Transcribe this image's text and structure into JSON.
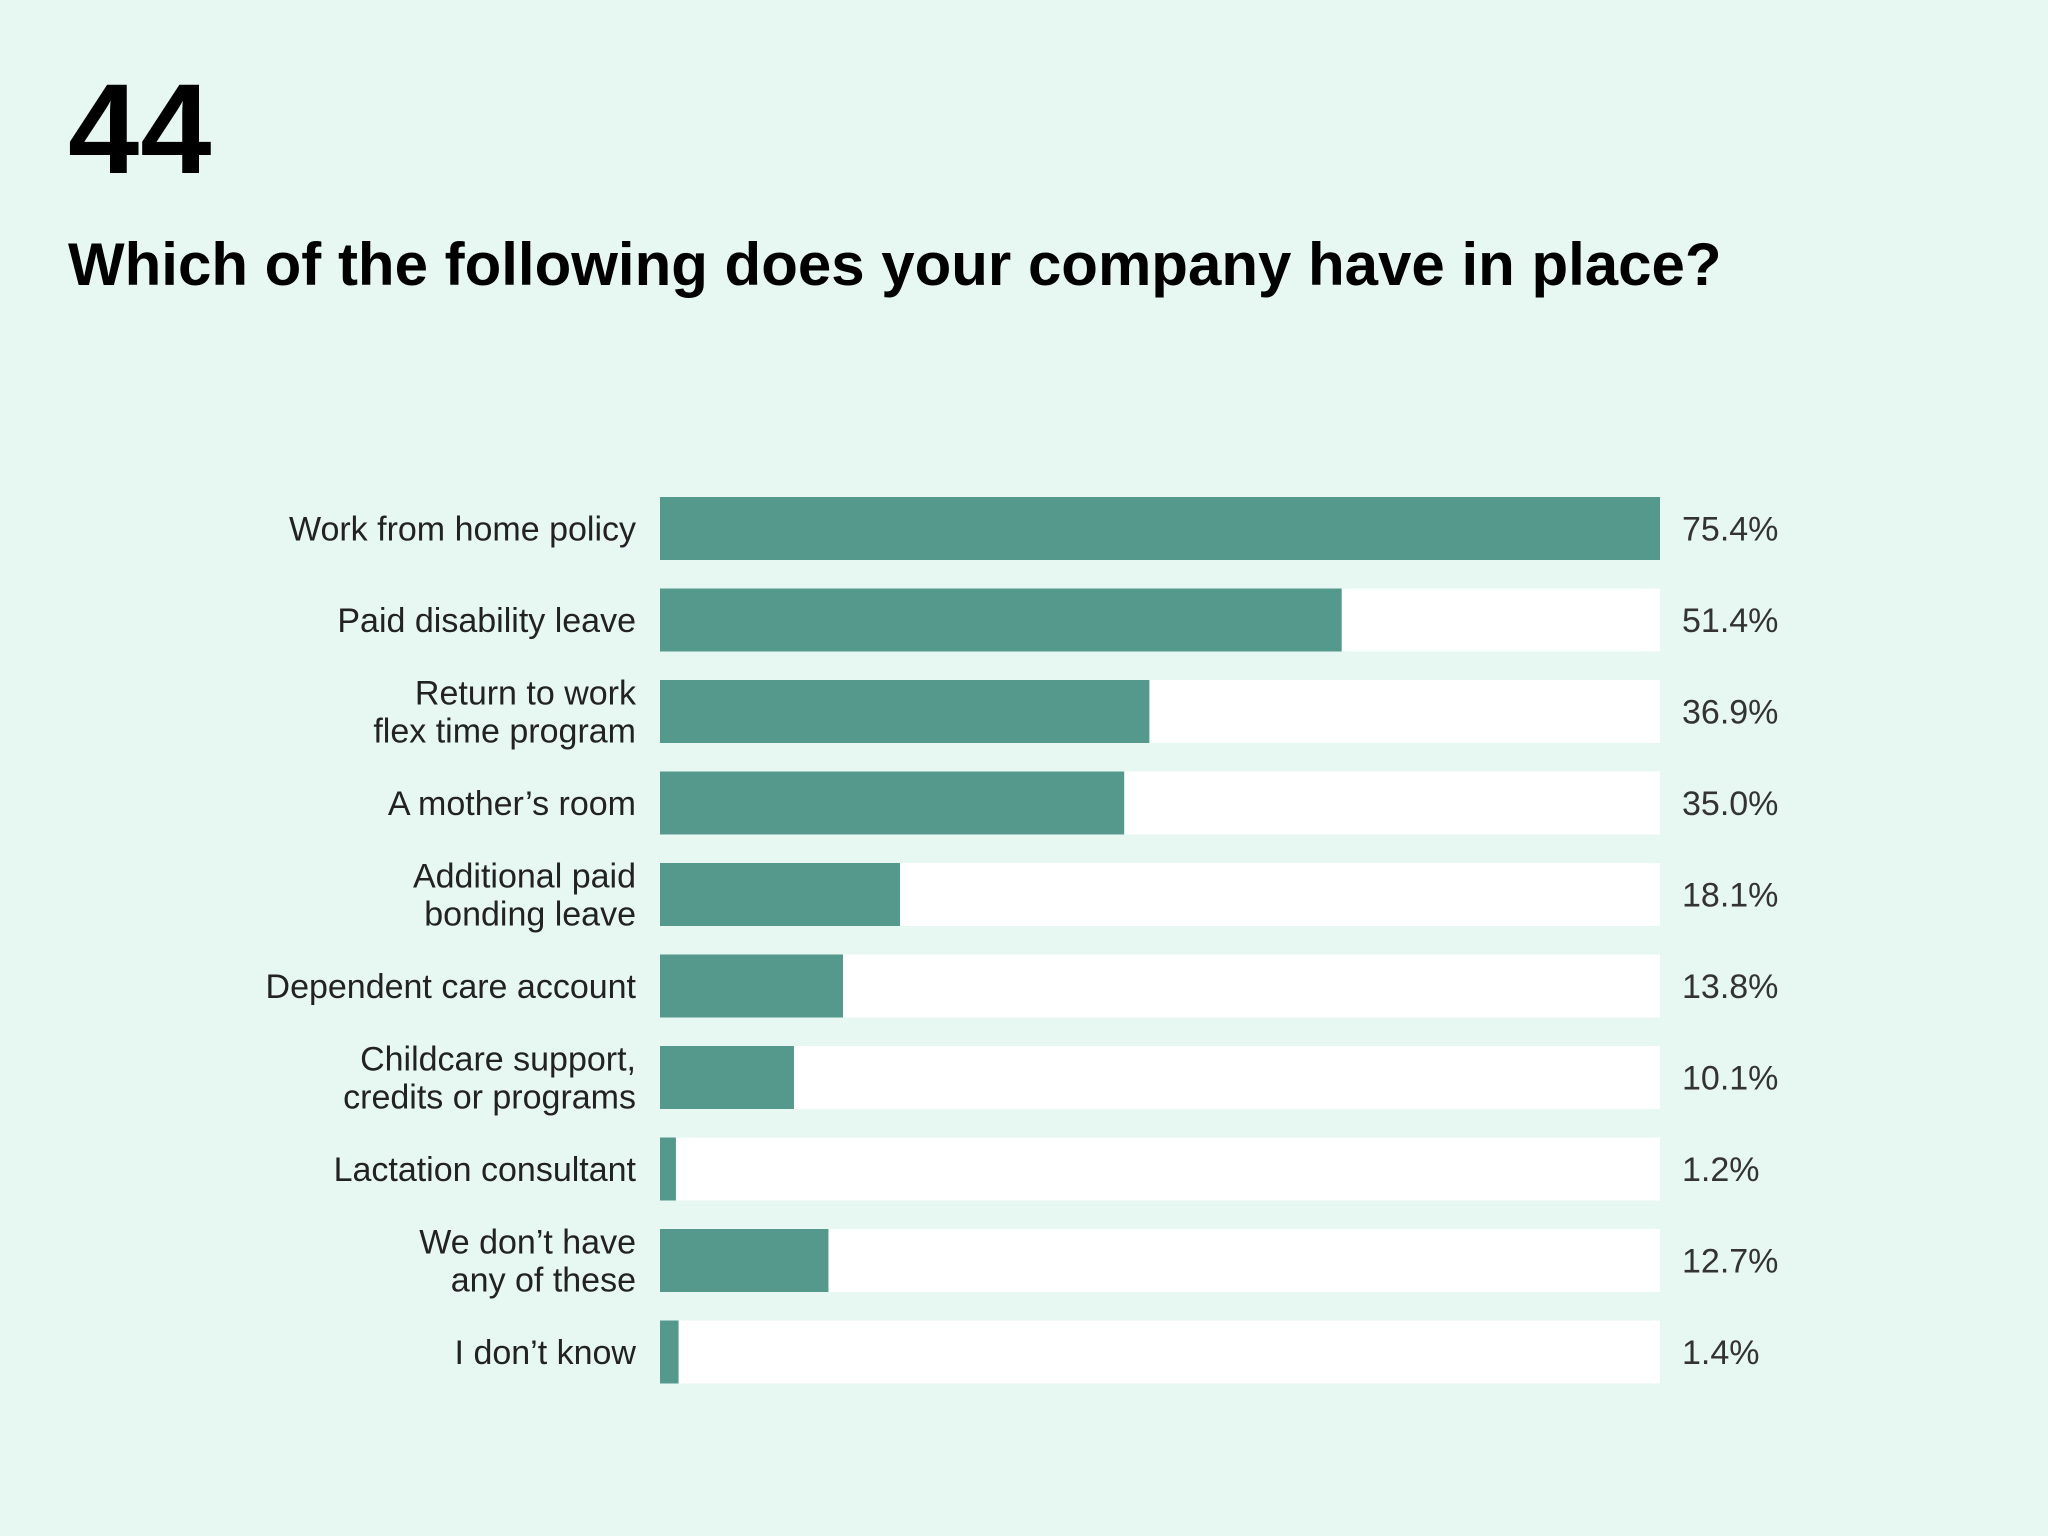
{
  "page": {
    "number": "44",
    "title": "Which of the following does your company have in place?"
  },
  "colors": {
    "background": "#e7f7f2",
    "bar_fill": "#55998d",
    "bar_track": "#ffffff",
    "label_text": "#222222",
    "value_text": "#333333"
  },
  "chart_data": {
    "type": "bar",
    "orientation": "horizontal",
    "title": "Which of the following does your company have in place?",
    "xlim": [
      0,
      75.4
    ],
    "grid": false,
    "legend": "none",
    "categories": [
      [
        "Work from home policy"
      ],
      [
        "Paid disability leave"
      ],
      [
        "Return to work",
        "flex time program"
      ],
      [
        "A mother’s room"
      ],
      [
        "Additional paid",
        "bonding leave"
      ],
      [
        "Dependent care account"
      ],
      [
        "Childcare support,",
        "credits or programs"
      ],
      [
        "Lactation consultant"
      ],
      [
        "We don’t have",
        "any of these"
      ],
      [
        "I don’t know"
      ]
    ],
    "values": [
      75.4,
      51.4,
      36.9,
      35.0,
      18.1,
      13.8,
      10.1,
      1.2,
      12.7,
      1.4
    ],
    "value_labels": [
      "75.4%",
      "51.4%",
      "36.9%",
      "35.0%",
      "18.1%",
      "13.8%",
      "10.1%",
      "1.2%",
      "12.7%",
      "1.4%"
    ]
  }
}
